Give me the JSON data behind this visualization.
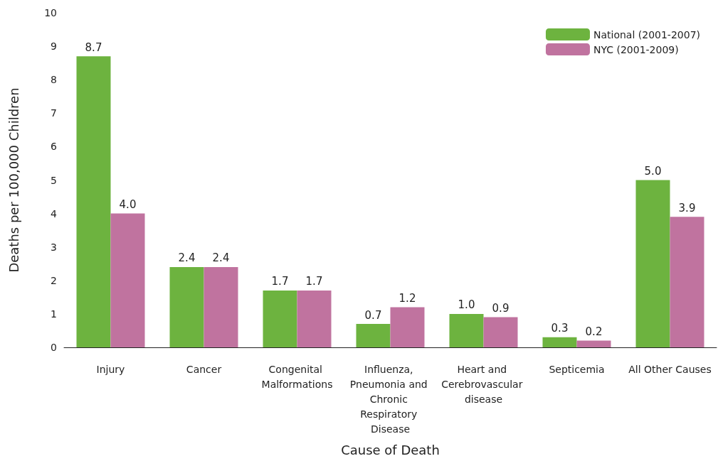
{
  "chart_data": {
    "type": "bar",
    "categories": [
      "Injury",
      "Cancer",
      "Congenital Malformations",
      "Influenza, Pneumonia and Chronic Respiratory Disease",
      "Heart and Cerebrovascular disease",
      "Septicemia",
      "All Other Causes"
    ],
    "series": [
      {
        "name": "National (2001-2007)",
        "color": "#6db33f",
        "values": [
          8.7,
          2.4,
          1.7,
          0.7,
          1.0,
          0.3,
          5.0
        ],
        "value_labels": [
          "8.7",
          "2.4",
          "1.7",
          "0.7",
          "1.0",
          "0.3",
          "5.0"
        ]
      },
      {
        "name": "NYC (2001-2009)",
        "color": "#c0739f",
        "values": [
          4.0,
          2.4,
          1.7,
          1.2,
          0.9,
          0.2,
          3.9
        ],
        "value_labels": [
          "4.0",
          "2.4",
          "1.7",
          "1.2",
          "0.9",
          "0.2",
          "3.9"
        ]
      }
    ],
    "xlabel": "Cause of Death",
    "ylabel": "Deaths per 100,000 Children",
    "ylim": [
      0,
      10
    ],
    "yticks": [
      0,
      1,
      2,
      3,
      4,
      5,
      6,
      7,
      8,
      9,
      10
    ],
    "grid": false,
    "legend": "top right"
  }
}
